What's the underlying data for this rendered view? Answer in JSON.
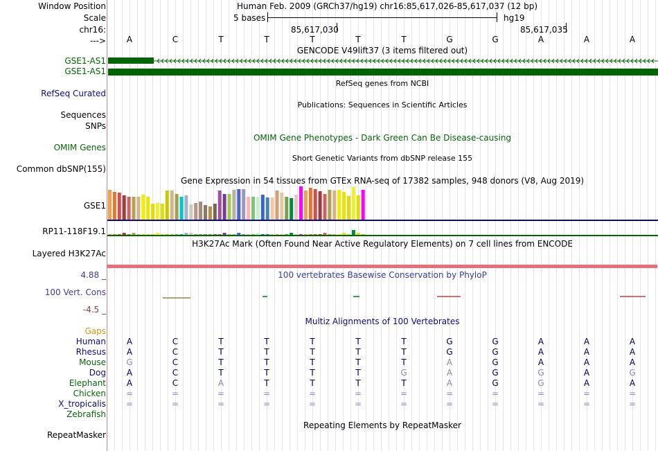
{
  "colors": {
    "separator": "#cc8888",
    "gencode_green": "#006400",
    "refseq_navy": "#0c0c78",
    "omim_green": "#0a640a",
    "gaps_orange": "#d29614",
    "phylop_blue": "#3c3c96",
    "phylop_red": "#8a3c3c",
    "h3k27ac_red": "#e6707a"
  },
  "header": {
    "labels": {
      "window_position": "Window Position",
      "scale": "Scale",
      "chr": "chr16:",
      "arrow": "--->"
    },
    "assembly_text": "Human Feb. 2009 (GRCh37/hg19)  chr16:85,617,026-85,617,037 (12 bp)",
    "scale_bases": "5 bases",
    "scale_db": "hg19",
    "coord_1": "85,617,030",
    "coord_2": "85,617,035",
    "bases": [
      "A",
      "C",
      "T",
      "T",
      "T",
      "T",
      "T",
      "G",
      "G",
      "A",
      "A",
      "A"
    ]
  },
  "tracks": {
    "gencode": {
      "title": "GENCODE V49lift37 (3 items filtered out)",
      "item_1": "GSE1-AS1",
      "item_2": "GSE1-AS1"
    },
    "refseq": {
      "label": "RefSeq Curated",
      "title": "RefSeq genes from NCBI"
    },
    "publications": {
      "label": "Sequences",
      "title": "Publications: Sequences in Scientific Articles"
    },
    "snps": {
      "label": "SNPs"
    },
    "omim": {
      "label": "OMIM Genes",
      "title": "OMIM Gene Phenotypes - Dark Green Can Be Disease-causing"
    },
    "dbsnp": {
      "label": "Common dbSNP(155)",
      "title": "Short Genetic Variants from dbSNP release 155"
    },
    "gtex": {
      "title": "Gene Expression in 54 tissues from GTEx RNA-seq of 17382 samples, 948 donors (V8, Aug 2019)",
      "gene_1": "GSE1",
      "gene_2": "RP11-118F19.1"
    },
    "h3k27ac": {
      "label": "Layered H3K27Ac",
      "title": "H3K27Ac Mark (Often Found Near Active Regulatory Elements) on 7 cell lines from ENCODE"
    },
    "phylop": {
      "label": "100 Vert. Cons",
      "max": "4.88 _",
      "min": "-4.5 _",
      "title": "100 vertebrates Basewise Conservation by PhyloP"
    },
    "gaps": {
      "label": "Gaps"
    },
    "multiz": {
      "title": "Multiz Alignments of 100 Vertebrates",
      "species": [
        {
          "name": "Human",
          "bases": [
            "A",
            "C",
            "T",
            "T",
            "T",
            "T",
            "T",
            "G",
            "G",
            "A",
            "A",
            "A"
          ],
          "dim": [
            false,
            false,
            false,
            false,
            false,
            false,
            false,
            false,
            false,
            false,
            false,
            false
          ]
        },
        {
          "name": "Rhesus",
          "bases": [
            "A",
            "C",
            "T",
            "T",
            "T",
            "T",
            "T",
            "G",
            "G",
            "A",
            "A",
            "A"
          ],
          "dim": [
            false,
            false,
            false,
            false,
            false,
            false,
            false,
            false,
            false,
            false,
            false,
            false
          ]
        },
        {
          "name": "Mouse",
          "bases": [
            "G",
            "C",
            "T",
            "T",
            "T",
            "T",
            "T",
            "A",
            "G",
            "A",
            "A",
            "A"
          ],
          "dim": [
            true,
            false,
            false,
            false,
            false,
            false,
            false,
            true,
            false,
            false,
            false,
            false
          ]
        },
        {
          "name": "Dog",
          "bases": [
            "A",
            "C",
            "T",
            "T",
            "T",
            "T",
            "G",
            "A",
            "G",
            "G",
            "A",
            "G"
          ],
          "dim": [
            false,
            false,
            false,
            false,
            false,
            false,
            true,
            true,
            false,
            true,
            false,
            true
          ]
        },
        {
          "name": "Elephant",
          "bases": [
            "A",
            "C",
            "A",
            "T",
            "T",
            "T",
            "T",
            "A",
            "G",
            "G",
            "A",
            "A"
          ],
          "dim": [
            false,
            false,
            true,
            false,
            false,
            false,
            false,
            true,
            false,
            true,
            false,
            false
          ]
        },
        {
          "name": "Chicken",
          "bases": [
            "=",
            "=",
            "=",
            "=",
            "=",
            "=",
            "=",
            "=",
            "=",
            "=",
            "=",
            "="
          ],
          "dim": [
            true,
            true,
            true,
            true,
            true,
            true,
            true,
            true,
            true,
            true,
            true,
            true
          ]
        },
        {
          "name": "X_tropicalis",
          "bases": [
            "=",
            "=",
            "=",
            "=",
            "=",
            "=",
            "=",
            "=",
            "=",
            "=",
            "=",
            "="
          ],
          "dim": [
            true,
            true,
            true,
            true,
            true,
            true,
            true,
            true,
            true,
            true,
            true,
            true
          ]
        },
        {
          "name": "Zebrafish",
          "bases": [
            "",
            "",
            "",
            "",
            "",
            "",
            "",
            "",
            "",
            "",
            "",
            ""
          ],
          "dim": [
            false,
            false,
            false,
            false,
            false,
            false,
            false,
            false,
            false,
            false,
            false,
            false
          ]
        }
      ]
    },
    "repeatmasker": {
      "label": "RepeatMasker",
      "title": "Repeating Elements by RepeatMasker"
    }
  }
}
